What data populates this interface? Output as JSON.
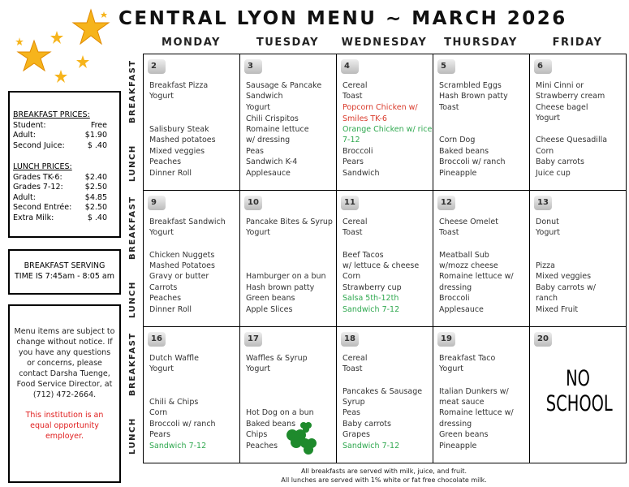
{
  "header": {
    "title": "CENTRAL LYON MENU ~ MARCH 2026"
  },
  "days": [
    "MONDAY",
    "TUESDAY",
    "WEDNESDAY",
    "THURSDAY",
    "FRIDAY"
  ],
  "meal_labels": [
    "BREAKFAST",
    "LUNCH"
  ],
  "weeks": [
    [
      {
        "date": 2,
        "breakfast": [
          "Breakfast Pizza",
          "Yogurt"
        ],
        "lunch": [
          "Salisbury Steak",
          "Mashed potatoes",
          "Mixed veggies",
          "Peaches",
          "Dinner Roll"
        ]
      },
      {
        "date": 3,
        "breakfast": [
          "Sausage & Pancake",
          "Sandwich",
          "Yogurt"
        ],
        "lunch": [
          "Chili Crispitos",
          "Romaine lettuce",
          "w/ dressing",
          "Peas",
          "Sandwich K-4",
          "Applesauce"
        ]
      },
      {
        "date": 4,
        "breakfast": [
          "Cereal",
          "Toast"
        ],
        "lunch": [
          {
            "text": "Popcorn Chicken w/",
            "color": "#d93a2b"
          },
          {
            "text": "Smiles TK-6",
            "color": "#d93a2b"
          },
          {
            "text": "Orange Chicken w/ rice",
            "color": "#2fa84f"
          },
          {
            "text": "7-12",
            "color": "#2fa84f"
          },
          "Broccoli",
          "Pears",
          "Sandwich"
        ]
      },
      {
        "date": 5,
        "breakfast": [
          "Scrambled Eggs",
          "Hash Brown patty",
          "Toast"
        ],
        "lunch": [
          "Corn Dog",
          "Baked beans",
          "Broccoli w/ ranch",
          "Pineapple"
        ]
      },
      {
        "date": 6,
        "breakfast": [
          "Mini Cinni or",
          "Strawberry cream",
          "Cheese bagel",
          "Yogurt"
        ],
        "lunch": [
          "Cheese Quesadilla",
          "Corn",
          "Baby carrots",
          "Juice cup"
        ]
      }
    ],
    [
      {
        "date": 9,
        "breakfast": [
          "Breakfast Sandwich",
          "Yogurt"
        ],
        "lunch": [
          "Chicken Nuggets",
          "Mashed Potatoes",
          "Gravy or butter",
          "Carrots",
          "Peaches",
          "Dinner Roll"
        ]
      },
      {
        "date": 10,
        "breakfast": [
          "Pancake Bites & Syrup",
          "Yogurt"
        ],
        "lunch": [
          "Hamburger on a bun",
          "Hash brown patty",
          "Green beans",
          "Apple Slices"
        ]
      },
      {
        "date": 11,
        "breakfast": [
          "Cereal",
          "Toast"
        ],
        "lunch": [
          "Beef Tacos",
          "w/ lettuce & cheese",
          "Corn",
          "Strawberry cup",
          {
            "text": "Salsa 5th-12th",
            "color": "#2fa84f"
          },
          {
            "text": "Sandwich 7-12",
            "color": "#2fa84f"
          }
        ]
      },
      {
        "date": 12,
        "breakfast": [
          "Cheese Omelet",
          "Toast"
        ],
        "lunch": [
          "Meatball Sub",
          "w/mozz cheese",
          "Romaine lettuce w/",
          "dressing",
          "Broccoli",
          "Applesauce"
        ]
      },
      {
        "date": 13,
        "breakfast": [
          "Donut",
          "Yogurt"
        ],
        "lunch": [
          "Pizza",
          "Mixed veggies",
          "Baby carrots w/",
          "ranch",
          "Mixed Fruit"
        ]
      }
    ],
    [
      {
        "date": 16,
        "breakfast": [
          "Dutch Waffle",
          "Yogurt"
        ],
        "lunch": [
          "Chili & Chips",
          "Corn",
          "Broccoli w/ ranch",
          "Pears",
          {
            "text": "Sandwich 7-12",
            "color": "#2fa84f"
          }
        ]
      },
      {
        "date": 17,
        "breakfast": [
          "Waffles & Syrup",
          "Yogurt"
        ],
        "lunch": [
          "Hot Dog on a bun",
          "Baked beans",
          "Chips",
          "Peaches"
        ]
      },
      {
        "date": 18,
        "breakfast": [
          "Cereal",
          "Toast"
        ],
        "lunch": [
          "Pancakes & Sausage",
          "Syrup",
          "Peas",
          "Baby carrots",
          "Grapes",
          {
            "text": "Sandwich 7-12",
            "color": "#2fa84f"
          }
        ]
      },
      {
        "date": 19,
        "breakfast": [
          "Breakfast Taco",
          "Yogurt"
        ],
        "lunch": [
          "Italian Dunkers w/",
          "meat sauce",
          "Romaine lettuce w/",
          "dressing",
          "Green beans",
          "Pineapple"
        ]
      },
      {
        "date": 20,
        "note": "NO SCHOOL"
      }
    ]
  ],
  "prices": {
    "breakfast_heading": "BREAKFAST PRICES:",
    "breakfast": [
      [
        "Student:",
        "Free"
      ],
      [
        "Adult:",
        "$1.90"
      ],
      [
        "Second Juice:",
        "$ .40"
      ]
    ],
    "lunch_heading": "LUNCH PRICES:",
    "lunch": [
      [
        "Grades TK-6:",
        "$2.40"
      ],
      [
        "Grades 7-12:",
        "$2.50"
      ],
      [
        "Adult:",
        "$4.85"
      ],
      [
        "Second Entrée:",
        "$2.50"
      ],
      [
        "Extra Milk:",
        "$ .40"
      ]
    ]
  },
  "serving_time": "BREAKFAST SERVING TIME IS 7:45am - 8:05 am",
  "notice": "Menu items are subject to change without notice. If you have any questions or concerns, please contact Darsha Tuenge, Food Service Director, at (712) 472-2664.",
  "equal_opportunity": "This institution is an equal opportunity employer.",
  "footer": [
    "All breakfasts are served with milk, juice, and fruit.",
    "All lunches are served with 1% white or fat free chocolate milk."
  ]
}
